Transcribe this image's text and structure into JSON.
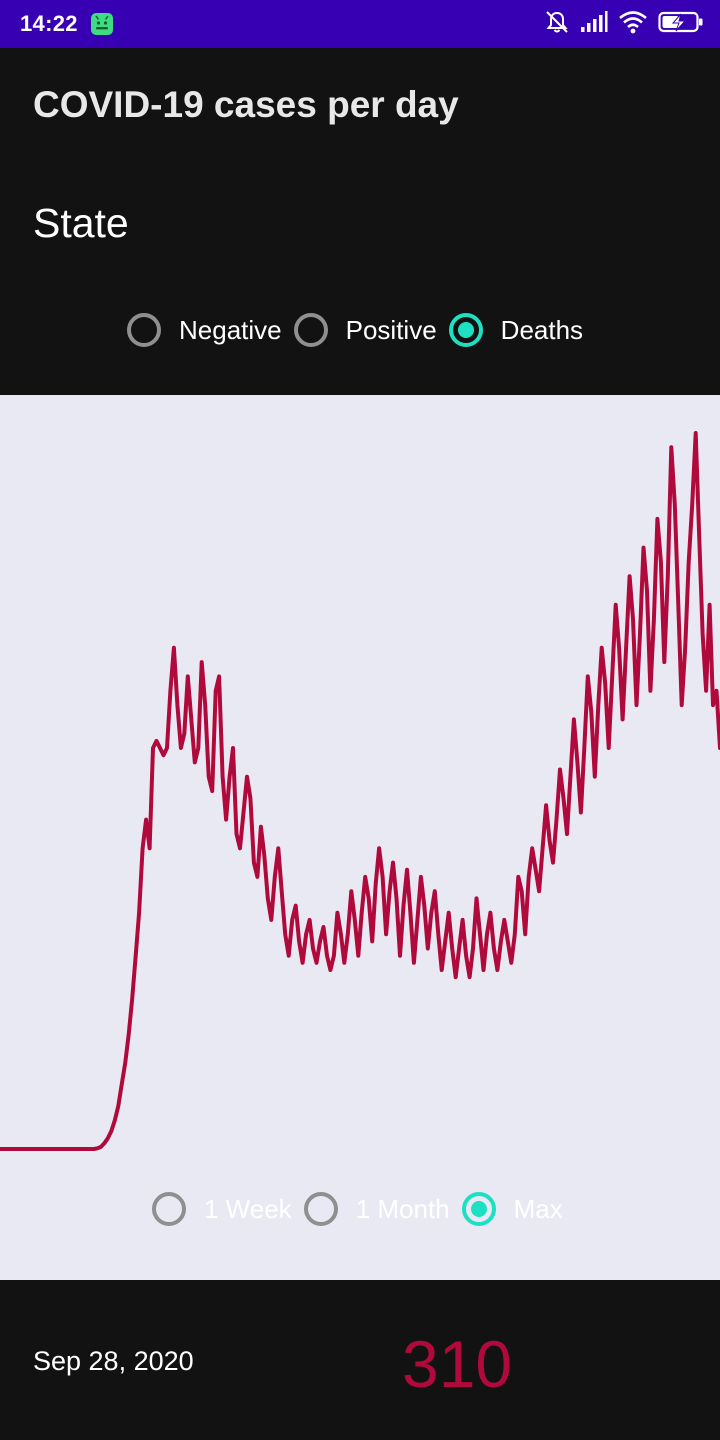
{
  "status_bar": {
    "time": "14:22",
    "icons": [
      "android-notification-icon",
      "muted-bell-icon",
      "signal-icon",
      "wifi-icon",
      "battery-charging-icon"
    ]
  },
  "header": {
    "title": "COVID-19 cases per day",
    "region": "State"
  },
  "metric_options": [
    {
      "label": "Negative",
      "checked": false
    },
    {
      "label": "Positive",
      "checked": false
    },
    {
      "label": "Deaths",
      "checked": true
    }
  ],
  "range_options": [
    {
      "label": "1 Week",
      "checked": false
    },
    {
      "label": "1 Month",
      "checked": false
    },
    {
      "label": "Max",
      "checked": true
    }
  ],
  "colors": {
    "accent": "#1de0c3",
    "line": "#b00a3c",
    "chart_background": "#e9e9f4",
    "app_background": "#121212",
    "status_bar": "#3700b3"
  },
  "chart_data": {
    "type": "line",
    "title": "",
    "xlabel": "",
    "ylabel": "",
    "grid": false,
    "ylim": [
      0,
      1000
    ],
    "values": [
      0,
      0,
      0,
      0,
      0,
      0,
      0,
      0,
      0,
      0,
      0,
      0,
      0,
      0,
      0,
      0,
      0,
      0,
      0,
      0,
      0,
      0,
      0,
      0,
      0,
      0,
      0,
      0,
      1,
      3,
      8,
      15,
      25,
      40,
      60,
      90,
      120,
      160,
      210,
      270,
      330,
      420,
      460,
      420,
      560,
      570,
      560,
      550,
      560,
      640,
      700,
      620,
      560,
      580,
      660,
      600,
      540,
      560,
      680,
      620,
      520,
      500,
      640,
      660,
      520,
      460,
      520,
      560,
      440,
      420,
      470,
      520,
      490,
      400,
      380,
      450,
      410,
      350,
      320,
      380,
      420,
      360,
      300,
      270,
      320,
      340,
      290,
      260,
      300,
      320,
      280,
      260,
      290,
      310,
      270,
      250,
      270,
      330,
      300,
      260,
      300,
      360,
      320,
      270,
      330,
      380,
      350,
      290,
      370,
      420,
      380,
      300,
      360,
      400,
      350,
      270,
      340,
      390,
      330,
      260,
      320,
      380,
      340,
      280,
      330,
      360,
      300,
      250,
      290,
      330,
      280,
      240,
      280,
      320,
      270,
      240,
      280,
      350,
      300,
      250,
      300,
      330,
      280,
      250,
      290,
      320,
      290,
      260,
      300,
      380,
      360,
      300,
      380,
      420,
      390,
      360,
      420,
      480,
      430,
      400,
      460,
      530,
      490,
      440,
      520,
      600,
      540,
      470,
      560,
      660,
      610,
      520,
      620,
      700,
      650,
      560,
      660,
      760,
      700,
      600,
      700,
      800,
      740,
      620,
      720,
      840,
      780,
      640,
      740,
      880,
      820,
      680,
      800,
      980,
      900,
      760,
      620,
      700,
      820,
      900,
      1000,
      860,
      720,
      640,
      760,
      620,
      640,
      560
    ],
    "highlight": {
      "date": "Sep 28, 2020",
      "value": 310
    }
  }
}
